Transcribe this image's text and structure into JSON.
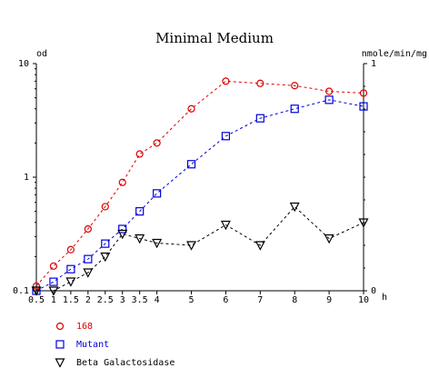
{
  "chart_data": {
    "type": "line",
    "title": "Minimal Medium",
    "ylabel": "od",
    "y2label": "nmole/min/mg",
    "xunit": "h",
    "x_ticks": [
      0.5,
      1,
      1.5,
      2,
      2.5,
      3,
      3.5,
      4,
      5,
      6,
      7,
      8,
      9,
      10
    ],
    "x_tick_labels": [
      "0.5",
      "1",
      "1.5",
      "2",
      "2.5",
      "3",
      "3.5",
      "4",
      "5",
      "6",
      "7",
      "8",
      "9",
      "10"
    ],
    "xlim": [
      0.5,
      10
    ],
    "ylim": [
      0.1,
      10
    ],
    "yscale": "log",
    "y_tick_labels": [
      "0.1",
      "1",
      "10"
    ],
    "y2lim": [
      0,
      1
    ],
    "y2_tick_labels": [
      "0",
      "1"
    ],
    "grid": false,
    "legend_position": "bottom-left",
    "series": [
      {
        "name": "168",
        "axis": "left",
        "color": "#dd0000",
        "marker": "circle",
        "x": [
          0.5,
          1,
          1.5,
          2,
          2.5,
          3,
          3.5,
          4,
          5,
          6,
          7,
          8,
          9,
          10
        ],
        "y": [
          0.11,
          0.165,
          0.23,
          0.35,
          0.55,
          0.9,
          1.6,
          2.0,
          4.0,
          7.0,
          6.7,
          6.4,
          5.7,
          5.5
        ]
      },
      {
        "name": "Mutant",
        "axis": "left",
        "color": "#0000dd",
        "marker": "square",
        "x": [
          0.5,
          1,
          1.5,
          2,
          2.5,
          3,
          3.5,
          4,
          5,
          6,
          7,
          8,
          9,
          10
        ],
        "y": [
          0.1,
          0.12,
          0.155,
          0.19,
          0.26,
          0.35,
          0.5,
          0.72,
          1.3,
          2.3,
          3.3,
          4.0,
          4.8,
          4.2
        ]
      },
      {
        "name": "Beta Galactosidase",
        "axis": "right",
        "color": "#000000",
        "marker": "triangle-down",
        "x": [
          0.5,
          1,
          1.5,
          2,
          2.5,
          3,
          3.5,
          4,
          5,
          6,
          7,
          8,
          9,
          10
        ],
        "y": [
          0.0,
          0.0,
          0.04,
          0.08,
          0.15,
          0.25,
          0.23,
          0.21,
          0.2,
          0.29,
          0.2,
          0.37,
          0.23,
          0.3
        ]
      }
    ]
  }
}
